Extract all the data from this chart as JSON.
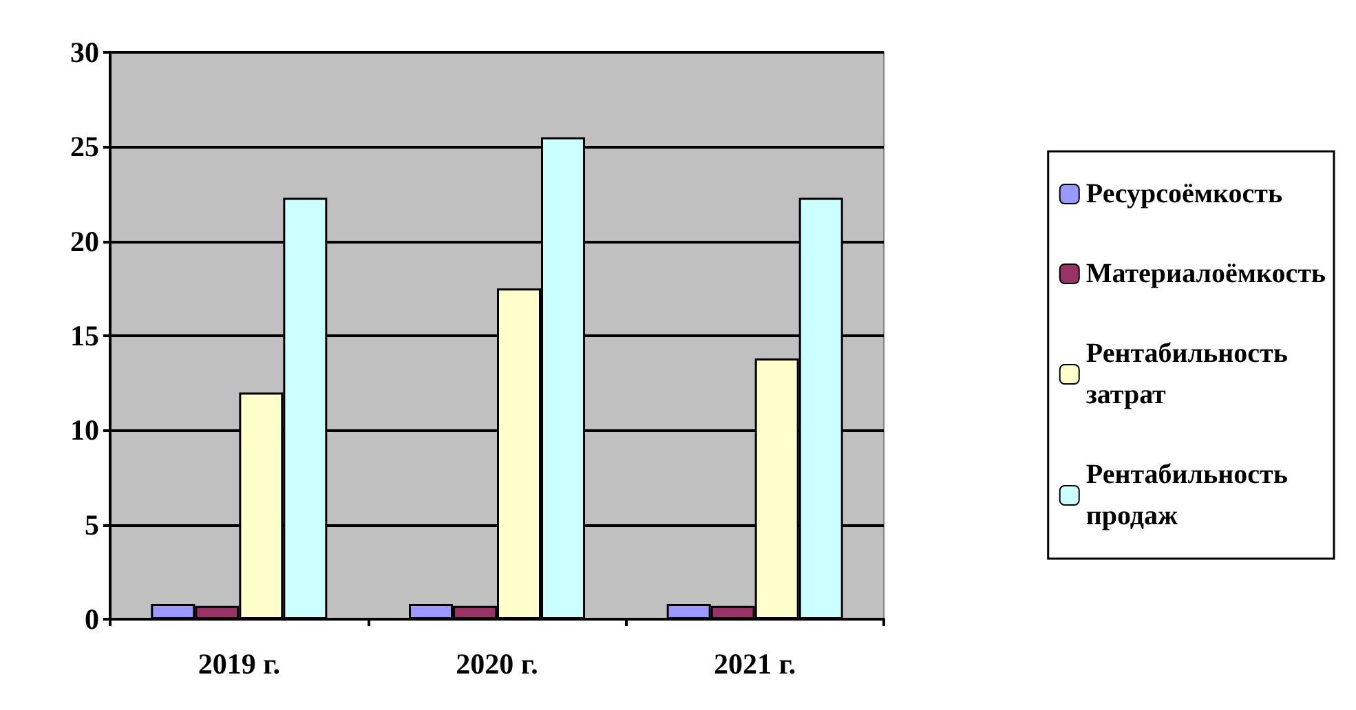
{
  "chart_data": {
    "type": "bar",
    "categories": [
      "2019 г.",
      "2020 г.",
      "2021 г."
    ],
    "series": [
      {
        "name": "Ресурсоёмкость",
        "color": "#9999ff",
        "values": [
          0.8,
          0.8,
          0.8
        ]
      },
      {
        "name": "Материалоёмкость",
        "color": "#993366",
        "values": [
          0.7,
          0.7,
          0.7
        ]
      },
      {
        "name": "Рентабильность затрат",
        "color": "#ffffcc",
        "values": [
          12.0,
          17.5,
          13.8
        ]
      },
      {
        "name": "Рентабильность продаж",
        "color": "#ccffff",
        "values": [
          22.3,
          25.5,
          22.3
        ]
      }
    ],
    "ylim": [
      0,
      30
    ],
    "yticks": [
      0,
      5,
      10,
      15,
      20,
      25,
      30
    ],
    "grid": "y",
    "legend": "right"
  }
}
